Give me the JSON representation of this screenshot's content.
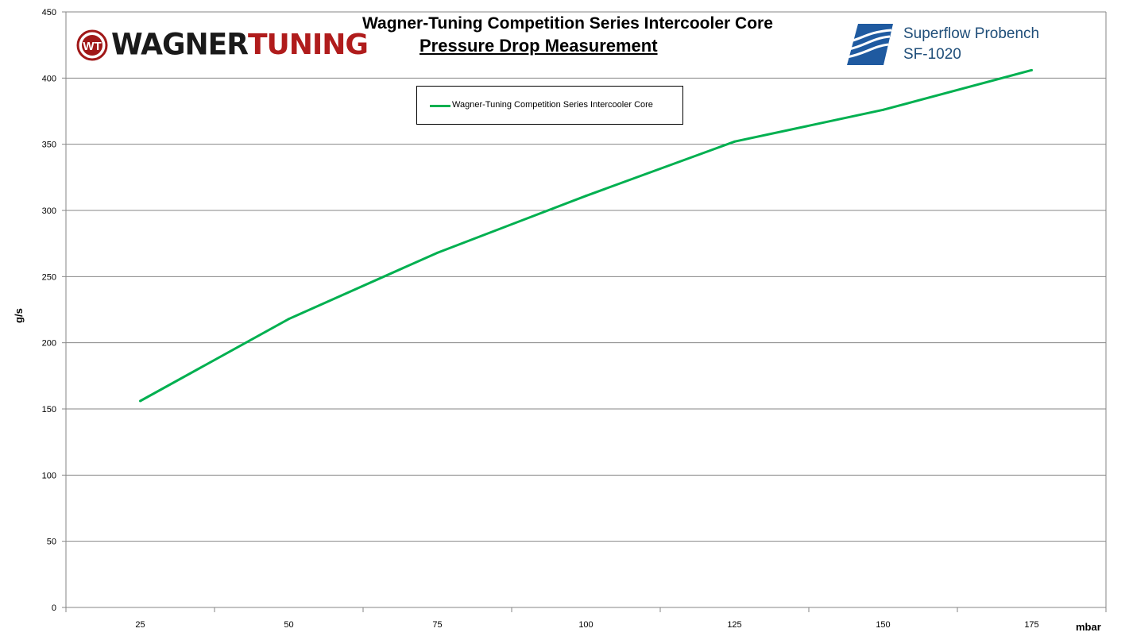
{
  "chart_data": {
    "type": "line",
    "title": "Wagner-Tuning Competition Series Intercooler Core",
    "subtitle": "Pressure Drop Measurement",
    "xlabel": "mbar",
    "ylabel": "g/s",
    "categories": [
      "25",
      "50",
      "75",
      "100",
      "125",
      "150",
      "175"
    ],
    "series": [
      {
        "name": "Wagner-Tuning Competition Series Intercooler Core",
        "values": [
          156,
          218,
          268,
          311,
          352,
          376,
          406
        ],
        "color": "#00b050"
      }
    ],
    "ylim": [
      0,
      450
    ],
    "yticks": [
      0,
      50,
      100,
      150,
      200,
      250,
      300,
      350,
      400,
      450
    ],
    "grid": true,
    "legend_position": "top-center"
  },
  "logos": {
    "left": {
      "part1": "WAGNER",
      "part2": "TUNING",
      "colors": [
        "#1a1a1a",
        "#b01c1c"
      ]
    },
    "right": {
      "line1": "Superflow Probench",
      "line2": "SF-1020",
      "color": "#1f4e79"
    }
  }
}
